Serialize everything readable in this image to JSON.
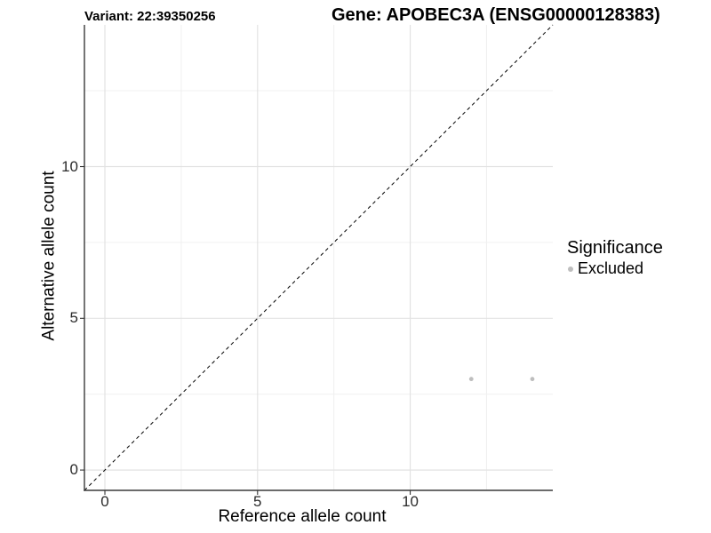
{
  "chart_data": {
    "type": "scatter",
    "title_left": "Variant: 22:39350256",
    "title_right": "Gene: APOBEC3A (ENSG00000128383)",
    "xlabel": "Reference allele count",
    "ylabel": "Alternative allele count",
    "xlim": [
      -0.67,
      14.67
    ],
    "ylim": [
      -0.67,
      14.67
    ],
    "x_ticks": [
      0,
      5,
      10
    ],
    "y_ticks": [
      0,
      5,
      10
    ],
    "x_minor_ticks": [
      2.5,
      7.5,
      12.5
    ],
    "y_minor_ticks": [
      2.5,
      7.5,
      12.5
    ],
    "grid": "major+minor",
    "identity_line": {
      "equation": "y = x",
      "style": "dashed",
      "color": "#000000"
    },
    "series": [
      {
        "name": "Excluded",
        "marker": "circle",
        "color": "#BEBEBE",
        "points": [
          {
            "x": 12,
            "y": 3
          },
          {
            "x": 14,
            "y": 3
          }
        ]
      }
    ],
    "legend": {
      "title": "Significance",
      "position": "right",
      "entries": [
        {
          "label": "Excluded",
          "color": "#BEBEBE",
          "marker": "circle"
        }
      ]
    }
  },
  "colors": {
    "background": "#FFFFFF",
    "grid_major": "#E2E2E2",
    "grid_minor": "#F0F0F0",
    "axis_line": "#3A3A3A",
    "tick_mark": "#333333",
    "tick_label": "#2B2B2B",
    "identity_line": "#000000",
    "point": "#BEBEBE",
    "text": "#000000"
  }
}
